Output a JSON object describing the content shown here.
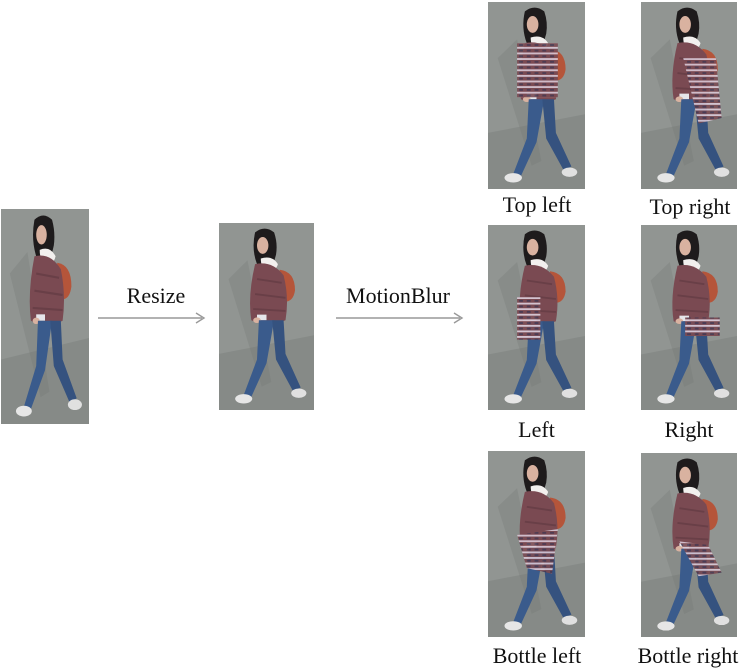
{
  "steps": {
    "resize_label": "Resize",
    "motionblur_label": "MotionBlur"
  },
  "variants": [
    {
      "key": "top-left",
      "label": "Top left"
    },
    {
      "key": "top-right",
      "label": "Top right"
    },
    {
      "key": "left",
      "label": "Left"
    },
    {
      "key": "right",
      "label": "Right"
    },
    {
      "key": "bottle-left",
      "label": "Bottle left"
    },
    {
      "key": "bottle-right",
      "label": "Bottle right"
    }
  ],
  "colors": {
    "ground": "#8b8f8c",
    "coat": "#7a4a52",
    "jeans": "#3a5b8c",
    "hair": "#1e1b1c",
    "bag": "#b5553a",
    "arrow": "#999999"
  }
}
